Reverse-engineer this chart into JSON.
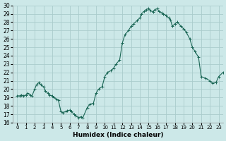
{
  "xlabel": "Humidex (Indice chaleur)",
  "bg_color": "#cce8e8",
  "grid_color": "#aacccc",
  "line_color": "#1a6655",
  "xlim": [
    -0.5,
    23.5
  ],
  "ylim": [
    16,
    30
  ],
  "yticks": [
    16,
    17,
    18,
    19,
    20,
    21,
    22,
    23,
    24,
    25,
    26,
    27,
    28,
    29,
    30
  ],
  "xticks": [
    0,
    1,
    2,
    3,
    4,
    5,
    6,
    7,
    8,
    9,
    10,
    11,
    12,
    13,
    14,
    15,
    16,
    17,
    18,
    19,
    20,
    21,
    22,
    23
  ],
  "x": [
    0.0,
    0.3,
    0.5,
    0.7,
    1.0,
    1.2,
    1.5,
    1.7,
    2.0,
    2.2,
    2.5,
    2.7,
    3.0,
    3.2,
    3.5,
    3.7,
    4.0,
    4.2,
    4.5,
    4.7,
    5.0,
    5.2,
    5.5,
    5.7,
    6.0,
    6.2,
    6.5,
    6.7,
    7.0,
    7.3,
    7.5,
    8.0,
    8.3,
    8.7,
    9.0,
    9.3,
    9.7,
    10.0,
    10.3,
    10.7,
    11.0,
    11.3,
    11.7,
    12.0,
    12.3,
    12.7,
    13.0,
    13.3,
    13.7,
    14.0,
    14.2,
    14.5,
    14.7,
    15.0,
    15.2,
    15.5,
    15.7,
    16.0,
    16.2,
    16.5,
    16.7,
    17.0,
    17.3,
    17.5,
    17.7,
    18.0,
    18.3,
    18.7,
    19.0,
    19.3,
    19.7,
    20.0,
    20.3,
    20.7,
    21.0,
    21.5,
    22.0,
    22.3,
    22.7,
    23.0,
    23.5
  ],
  "y": [
    19.2,
    19.2,
    19.3,
    19.2,
    19.3,
    19.5,
    19.3,
    19.2,
    20.0,
    20.5,
    20.8,
    20.5,
    20.3,
    19.8,
    19.5,
    19.3,
    19.2,
    19.0,
    18.8,
    18.7,
    17.3,
    17.2,
    17.3,
    17.4,
    17.5,
    17.3,
    17.0,
    16.8,
    16.6,
    16.7,
    16.6,
    17.8,
    18.2,
    18.3,
    19.5,
    20.0,
    20.3,
    21.5,
    22.0,
    22.2,
    22.5,
    23.0,
    23.5,
    25.5,
    26.5,
    27.0,
    27.5,
    27.8,
    28.2,
    28.5,
    29.0,
    29.3,
    29.5,
    29.6,
    29.4,
    29.2,
    29.5,
    29.6,
    29.3,
    29.1,
    29.0,
    28.8,
    28.5,
    28.3,
    27.5,
    27.8,
    28.0,
    27.5,
    27.2,
    26.8,
    26.0,
    25.0,
    24.5,
    23.8,
    21.5,
    21.3,
    21.0,
    20.7,
    20.8,
    21.5,
    22.0
  ]
}
